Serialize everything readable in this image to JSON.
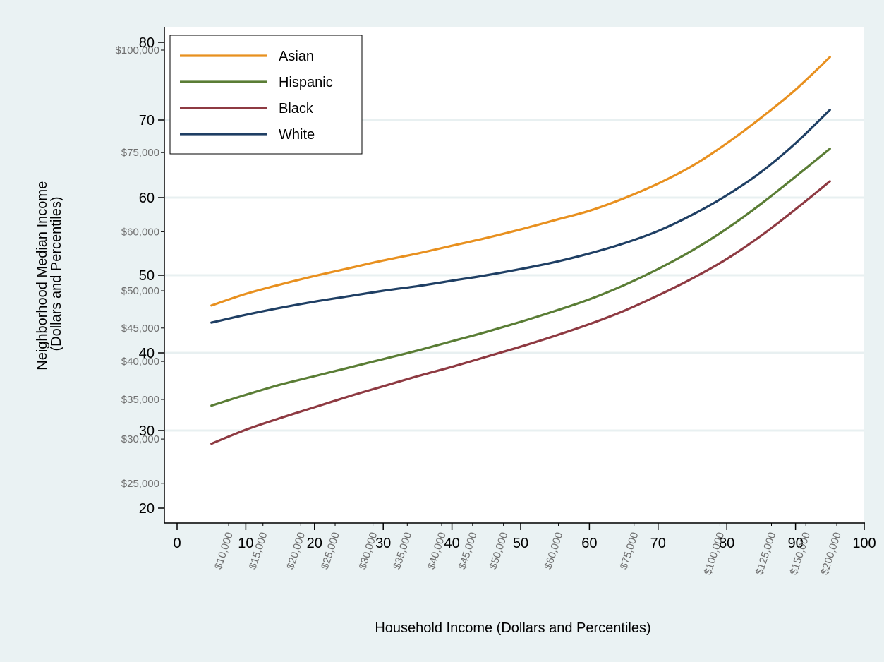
{
  "chart_data": {
    "type": "line",
    "xlabel": "Household Income (Dollars and Percentiles)",
    "ylabel_lines": [
      "Neighborhood Median Income",
      "(Dollars and Percentiles)"
    ],
    "xlim": [
      0,
      100
    ],
    "ylim": [
      20,
      80
    ],
    "x_ticks": [
      0,
      10,
      20,
      30,
      40,
      50,
      60,
      70,
      80,
      90,
      100
    ],
    "y_ticks": [
      20,
      30,
      40,
      50,
      60,
      70,
      80
    ],
    "y_gridlines": [
      30,
      40,
      50,
      60,
      70
    ],
    "x_dollar_ticks": [
      {
        "label": "$10,000",
        "pct": 7.5
      },
      {
        "label": "$15,000",
        "pct": 12.5
      },
      {
        "label": "$20,000",
        "pct": 18.0
      },
      {
        "label": "$25,000",
        "pct": 23.0
      },
      {
        "label": "$30,000",
        "pct": 28.5
      },
      {
        "label": "$35,000",
        "pct": 33.5
      },
      {
        "label": "$40,000",
        "pct": 38.5
      },
      {
        "label": "$45,000",
        "pct": 43.0
      },
      {
        "label": "$50,000",
        "pct": 47.5
      },
      {
        "label": "$60,000",
        "pct": 55.5
      },
      {
        "label": "$75,000",
        "pct": 66.5
      },
      {
        "label": "$100,000",
        "pct": 79.0
      },
      {
        "label": "$125,000",
        "pct": 86.5
      },
      {
        "label": "$150,000",
        "pct": 91.5
      },
      {
        "label": "$200,000",
        "pct": 96.0
      }
    ],
    "y_dollar_ticks": [
      {
        "label": "$100,000",
        "pct": 79.0
      },
      {
        "label": "$75,000",
        "pct": 65.8
      },
      {
        "label": "$60,000",
        "pct": 55.6
      },
      {
        "label": "$50,000",
        "pct": 48.0
      },
      {
        "label": "$45,000",
        "pct": 43.2
      },
      {
        "label": "$40,000",
        "pct": 38.9
      },
      {
        "label": "$35,000",
        "pct": 34.0
      },
      {
        "label": "$30,000",
        "pct": 28.9
      },
      {
        "label": "$25,000",
        "pct": 23.2
      }
    ],
    "x": [
      5,
      10,
      15,
      20,
      25,
      30,
      35,
      40,
      45,
      50,
      55,
      60,
      65,
      70,
      75,
      80,
      85,
      90,
      95
    ],
    "series": [
      {
        "name": "Asian",
        "color": "#e8901f",
        "values": [
          46.1,
          47.6,
          48.8,
          49.9,
          50.9,
          51.9,
          52.8,
          53.8,
          54.8,
          55.9,
          57.1,
          58.3,
          59.9,
          61.8,
          64.1,
          67.0,
          70.3,
          73.9,
          78.1
        ]
      },
      {
        "name": "Hispanic",
        "color": "#5a7d35",
        "values": [
          33.2,
          34.6,
          35.9,
          37.0,
          38.1,
          39.2,
          40.3,
          41.5,
          42.7,
          44.0,
          45.4,
          46.9,
          48.7,
          50.8,
          53.2,
          56.0,
          59.2,
          62.7,
          66.3
        ]
      },
      {
        "name": "Black",
        "color": "#8e3a42",
        "values": [
          28.3,
          30.1,
          31.6,
          33.0,
          34.4,
          35.7,
          37.0,
          38.2,
          39.5,
          40.8,
          42.2,
          43.7,
          45.4,
          47.4,
          49.6,
          52.1,
          55.1,
          58.5,
          62.1
        ]
      },
      {
        "name": "White",
        "color": "#1f3f64",
        "values": [
          43.9,
          44.9,
          45.8,
          46.6,
          47.3,
          48.0,
          48.6,
          49.3,
          50.0,
          50.8,
          51.7,
          52.8,
          54.1,
          55.7,
          57.8,
          60.3,
          63.3,
          67.0,
          71.3
        ]
      }
    ],
    "legend": {
      "position": "top-left",
      "entries": [
        "Asian",
        "Hispanic",
        "Black",
        "White"
      ]
    }
  }
}
